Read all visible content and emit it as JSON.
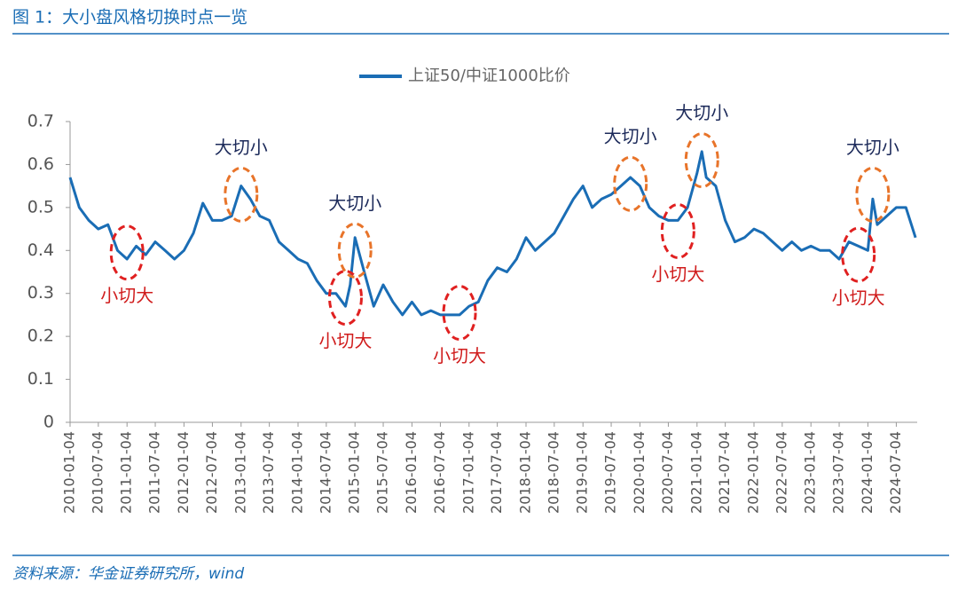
{
  "header": {
    "title": "图 1：大小盘风格切换时点一览"
  },
  "footer": {
    "source": "资料来源：华金证券研究所，wind"
  },
  "chart_data": {
    "type": "line",
    "x": [
      "2010-01-04",
      "2010-03-04",
      "2010-05-04",
      "2010-07-04",
      "2010-09-04",
      "2010-11-04",
      "2011-01-04",
      "2011-03-04",
      "2011-05-04",
      "2011-07-04",
      "2011-09-04",
      "2011-11-04",
      "2012-01-04",
      "2012-03-04",
      "2012-05-04",
      "2012-07-04",
      "2012-09-04",
      "2012-11-04",
      "2013-01-04",
      "2013-03-04",
      "2013-05-04",
      "2013-07-04",
      "2013-09-04",
      "2013-11-04",
      "2014-01-04",
      "2014-03-04",
      "2014-05-04",
      "2014-07-04",
      "2014-09-04",
      "2014-11-04",
      "2014-12-04",
      "2015-01-04",
      "2015-03-04",
      "2015-05-04",
      "2015-07-04",
      "2015-09-04",
      "2015-11-04",
      "2016-01-04",
      "2016-03-04",
      "2016-05-04",
      "2016-07-04",
      "2016-09-04",
      "2016-11-04",
      "2017-01-04",
      "2017-03-04",
      "2017-05-04",
      "2017-07-04",
      "2017-09-04",
      "2017-11-04",
      "2018-01-04",
      "2018-03-04",
      "2018-05-04",
      "2018-07-04",
      "2018-09-04",
      "2018-11-04",
      "2019-01-04",
      "2019-03-04",
      "2019-05-04",
      "2019-07-04",
      "2019-09-04",
      "2019-11-04",
      "2020-01-04",
      "2020-03-04",
      "2020-05-04",
      "2020-07-04",
      "2020-09-04",
      "2020-11-04",
      "2021-01-04",
      "2021-02-04",
      "2021-03-04",
      "2021-05-04",
      "2021-07-04",
      "2021-09-04",
      "2021-11-04",
      "2022-01-04",
      "2022-03-04",
      "2022-05-04",
      "2022-07-04",
      "2022-09-04",
      "2022-11-04",
      "2023-01-04",
      "2023-03-04",
      "2023-05-04",
      "2023-07-04",
      "2023-09-04",
      "2023-11-04",
      "2024-01-04",
      "2024-02-04",
      "2024-03-04",
      "2024-05-04",
      "2024-07-04",
      "2024-09-04",
      "2024-11-04"
    ],
    "series": [
      {
        "name": "上证50/中证1000比价",
        "color": "#1a6db5",
        "values": [
          0.57,
          0.5,
          0.47,
          0.45,
          0.46,
          0.4,
          0.38,
          0.41,
          0.39,
          0.42,
          0.4,
          0.38,
          0.4,
          0.44,
          0.51,
          0.47,
          0.47,
          0.48,
          0.55,
          0.52,
          0.48,
          0.47,
          0.42,
          0.4,
          0.38,
          0.37,
          0.33,
          0.3,
          0.3,
          0.27,
          0.32,
          0.43,
          0.35,
          0.27,
          0.32,
          0.28,
          0.25,
          0.28,
          0.25,
          0.26,
          0.25,
          0.25,
          0.25,
          0.27,
          0.28,
          0.33,
          0.36,
          0.35,
          0.38,
          0.43,
          0.4,
          0.42,
          0.44,
          0.48,
          0.52,
          0.55,
          0.5,
          0.52,
          0.53,
          0.55,
          0.57,
          0.55,
          0.5,
          0.48,
          0.47,
          0.47,
          0.5,
          0.58,
          0.63,
          0.57,
          0.55,
          0.47,
          0.42,
          0.43,
          0.45,
          0.44,
          0.42,
          0.4,
          0.42,
          0.4,
          0.41,
          0.4,
          0.4,
          0.38,
          0.42,
          0.41,
          0.4,
          0.52,
          0.46,
          0.48,
          0.5,
          0.5,
          0.43
        ]
      }
    ],
    "xlim": [
      "2010-01-04",
      "2024-11-15"
    ],
    "xticks": [
      "2010-01-04",
      "2010-07-04",
      "2011-01-04",
      "2011-07-04",
      "2012-01-04",
      "2012-07-04",
      "2013-01-04",
      "2013-07-04",
      "2014-01-04",
      "2014-07-04",
      "2015-01-04",
      "2015-07-04",
      "2016-01-04",
      "2016-07-04",
      "2017-01-04",
      "2017-07-04",
      "2018-01-04",
      "2018-07-04",
      "2019-01-04",
      "2019-07-04",
      "2020-01-04",
      "2020-07-04",
      "2021-01-04",
      "2021-07-04",
      "2022-01-04",
      "2022-07-04",
      "2023-01-04",
      "2023-07-04",
      "2024-01-04",
      "2024-07-04"
    ],
    "ylim": [
      0,
      0.7
    ],
    "yticks": [
      0,
      0.1,
      0.2,
      0.3,
      0.4,
      0.5,
      0.6,
      0.7
    ],
    "legend": "top",
    "annotations": [
      {
        "text": "大切小",
        "x": "2013-01-04",
        "y": 0.53,
        "color": "#e8742a"
      },
      {
        "text": "大切小",
        "x": "2015-01-04",
        "y": 0.4,
        "color": "#e8742a"
      },
      {
        "text": "大切小",
        "x": "2019-11-04",
        "y": 0.555,
        "color": "#e8742a"
      },
      {
        "text": "大切小",
        "x": "2021-02-04",
        "y": 0.61,
        "color": "#e8742a"
      },
      {
        "text": "大切小",
        "x": "2024-02-04",
        "y": 0.53,
        "color": "#e8742a"
      },
      {
        "text": "小切大",
        "x": "2011-01-04",
        "y": 0.395,
        "color": "#e02020"
      },
      {
        "text": "小切大",
        "x": "2014-11-04",
        "y": 0.29,
        "color": "#e02020"
      },
      {
        "text": "小切大",
        "x": "2016-11-04",
        "y": 0.255,
        "color": "#e02020"
      },
      {
        "text": "小切大",
        "x": "2020-09-04",
        "y": 0.445,
        "color": "#e02020"
      },
      {
        "text": "小切大",
        "x": "2023-11-04",
        "y": 0.39,
        "color": "#e02020"
      }
    ]
  }
}
